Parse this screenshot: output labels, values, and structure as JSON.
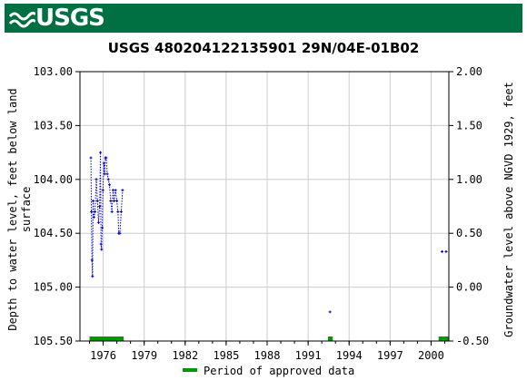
{
  "header": {
    "logo_text": "USGS",
    "colors": {
      "banner": "#006f41",
      "logo": "#ffffff"
    }
  },
  "chart_data": {
    "type": "scatter",
    "title": "USGS 480204122135901 29N/04E-01B02",
    "ylabel_left": [
      "Depth to water level, feet below land",
      "surface"
    ],
    "ylabel_right": "Groundwater level above NGVD 1929, feet",
    "xlim": [
      1974.3,
      2001.3
    ],
    "ylim_left": [
      103.0,
      105.5
    ],
    "ylim_right": [
      2.0,
      -0.5
    ],
    "x_ticks": [
      1976,
      1979,
      1982,
      1985,
      1988,
      1991,
      1994,
      1997,
      2000
    ],
    "x_tick_labels": [
      "1976",
      "1979",
      "1982",
      "1985",
      "1988",
      "1991",
      "1994",
      "1997",
      "2000"
    ],
    "y_ticks_left": [
      103.0,
      103.5,
      104.0,
      104.5,
      105.0,
      105.5
    ],
    "y_tick_labels_left": [
      "103.00",
      "103.50",
      "104.00",
      "104.50",
      "105.00",
      "105.50"
    ],
    "y_ticks_right": [
      2.0,
      1.5,
      1.0,
      0.5,
      0.0,
      -0.5
    ],
    "y_tick_labels_right": [
      "2.00",
      "1.50",
      "1.00",
      "0.50",
      "0.00",
      "-0.50"
    ],
    "grid": true,
    "series": [
      {
        "color": "#0000cc",
        "connected": true,
        "points": [
          [
            1975.1,
            103.8
          ],
          [
            1975.14,
            104.3
          ],
          [
            1975.18,
            104.75
          ],
          [
            1975.22,
            104.9
          ],
          [
            1975.26,
            104.2
          ],
          [
            1975.32,
            104.35
          ],
          [
            1975.4,
            104.3
          ],
          [
            1975.5,
            104.0
          ],
          [
            1975.58,
            104.2
          ],
          [
            1975.66,
            104.4
          ],
          [
            1975.74,
            104.25
          ],
          [
            1975.8,
            103.75
          ],
          [
            1975.84,
            104.6
          ],
          [
            1975.88,
            104.65
          ],
          [
            1975.93,
            104.45
          ],
          [
            1975.98,
            104.1
          ],
          [
            1976.05,
            103.85
          ],
          [
            1976.1,
            103.95
          ],
          [
            1976.16,
            103.8
          ],
          [
            1976.22,
            103.8
          ],
          [
            1976.3,
            103.95
          ],
          [
            1976.38,
            104.0
          ],
          [
            1976.46,
            104.05
          ],
          [
            1976.55,
            104.2
          ],
          [
            1976.64,
            104.3
          ],
          [
            1976.72,
            104.1
          ],
          [
            1976.8,
            104.2
          ],
          [
            1976.9,
            104.1
          ],
          [
            1977.0,
            104.2
          ],
          [
            1977.08,
            104.3
          ],
          [
            1977.14,
            104.5
          ],
          [
            1977.22,
            104.5
          ],
          [
            1977.32,
            104.3
          ],
          [
            1977.42,
            104.1
          ]
        ]
      },
      {
        "color": "#0000cc",
        "connected": false,
        "points": [
          [
            1992.6,
            105.23
          ]
        ]
      },
      {
        "color": "#0000cc",
        "connected": true,
        "points": [
          [
            2000.8,
            104.67
          ],
          [
            2001.1,
            104.67
          ]
        ]
      }
    ],
    "approved_periods": {
      "name": "Period of approved data",
      "color": "#009900",
      "ranges": [
        [
          1975.0,
          1977.5
        ],
        [
          1992.45,
          1992.8
        ],
        [
          2000.55,
          2001.3
        ]
      ]
    },
    "legend_placement": "bottom-center"
  }
}
